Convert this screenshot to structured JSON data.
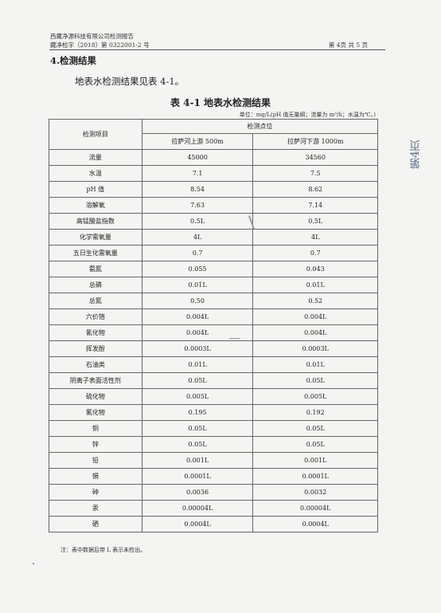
{
  "header": {
    "company": "西藏净源科技有限公司检测报告",
    "report_no": "藏净检字（2018）第 0322001-2 号",
    "page_label": "第 4页  共 5 页"
  },
  "section": {
    "title": "4.检测结果",
    "intro": "地表水检测结果见表 4-1。"
  },
  "table": {
    "title": "表 4-1   地表水检测结果",
    "unit_note": "单位：mg/L(pH 值无量纲；流量为 m³/h；水温为℃。)",
    "col_item": "检测项目",
    "col_points": "检测点位",
    "col_up": "拉萨河上游 500m",
    "col_down": "拉萨河下游 1000m",
    "rows": [
      {
        "item": "流量",
        "up": "45000",
        "down": "34560"
      },
      {
        "item": "水温",
        "up": "7.1",
        "down": "7.5"
      },
      {
        "item": "pH 值",
        "up": "8.54",
        "down": "8.62"
      },
      {
        "item": "溶解氧",
        "up": "7.63",
        "down": "7.14"
      },
      {
        "item": "高锰酸盐指数",
        "up": "0.5L",
        "down": "0.5L"
      },
      {
        "item": "化学需氧量",
        "up": "4L",
        "down": "4L"
      },
      {
        "item": "五日生化需氧量",
        "up": "0.7",
        "down": "0.7"
      },
      {
        "item": "氨氮",
        "up": "0.055",
        "down": "0.043"
      },
      {
        "item": "总磷",
        "up": "0.01L",
        "down": "0.01L"
      },
      {
        "item": "总氮",
        "up": "0.50",
        "down": "0.52"
      },
      {
        "item": "六价铬",
        "up": "0.004L",
        "down": "0.004L"
      },
      {
        "item": "氰化物",
        "up": "0.004L",
        "down": "0.004L"
      },
      {
        "item": "挥发酚",
        "up": "0.0003L",
        "down": "0.0003L"
      },
      {
        "item": "石油类",
        "up": "0.01L",
        "down": "0.01L"
      },
      {
        "item": "阴离子表面活性剂",
        "up": "0.05L",
        "down": "0.05L"
      },
      {
        "item": "硫化物",
        "up": "0.005L",
        "down": "0.005L"
      },
      {
        "item": "氟化物",
        "up": "0.195",
        "down": "0.192"
      },
      {
        "item": "铜",
        "up": "0.05L",
        "down": "0.05L"
      },
      {
        "item": "锌",
        "up": "0.05L",
        "down": "0.05L"
      },
      {
        "item": "铅",
        "up": "0.001L",
        "down": "0.001L"
      },
      {
        "item": "镉",
        "up": "0.0001L",
        "down": "0.0001L"
      },
      {
        "item": "砷",
        "up": "0.0036",
        "down": "0.0032"
      },
      {
        "item": "汞",
        "up": "0.00004L",
        "down": "0.00004L"
      },
      {
        "item": "硒",
        "up": "0.0004L",
        "down": "0.0004L"
      }
    ]
  },
  "footnote": "注：表中数据后带 L 表示未检出。",
  "side_mark": "第4页"
}
